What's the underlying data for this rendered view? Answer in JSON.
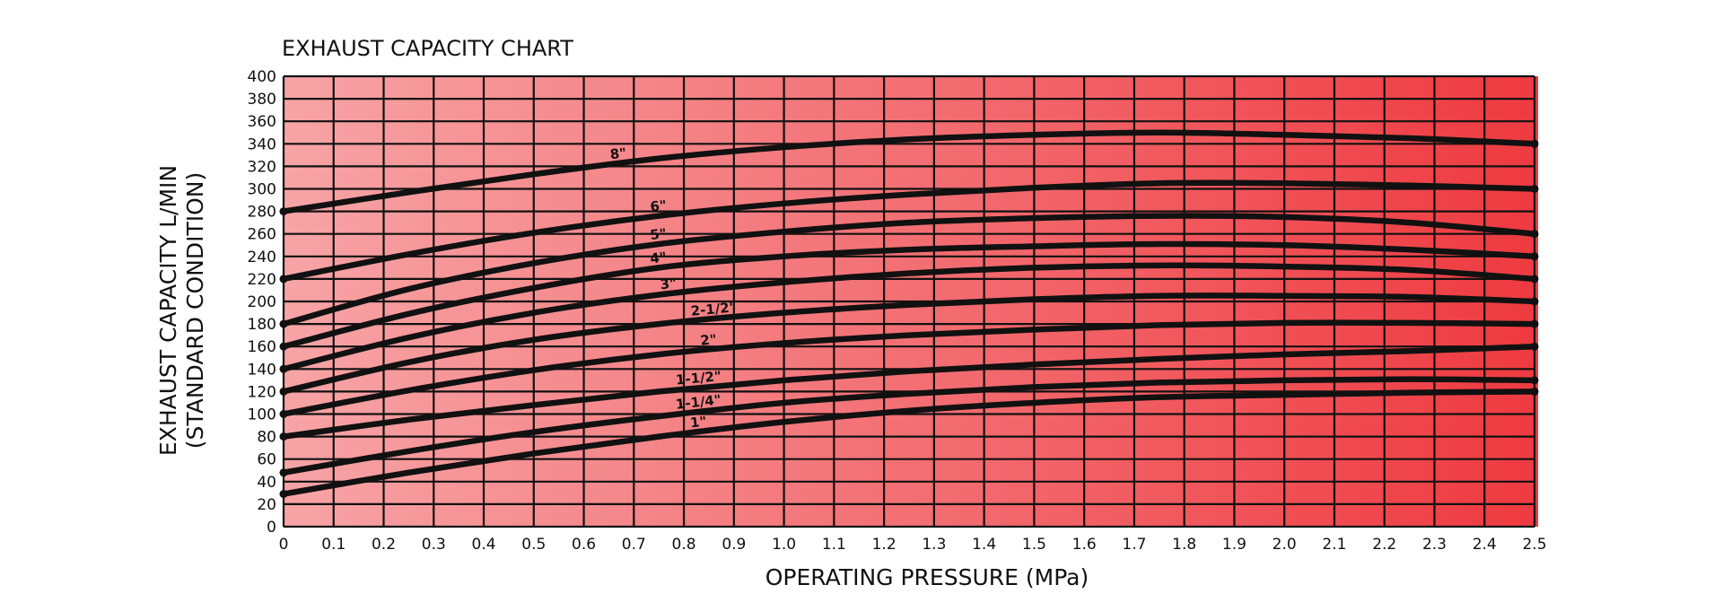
{
  "chart_data": {
    "type": "line",
    "title": "EXHAUST CAPACITY CHART",
    "xlabel": "OPERATING PRESSURE (MPa)",
    "ylabel": [
      "EXHAUST CAPACITY L/MIN",
      "(STANDARD CONDITION)"
    ],
    "xlim": [
      0,
      2.5
    ],
    "ylim": [
      0,
      400
    ],
    "x_ticks": [
      "0",
      "0.1",
      "0.2",
      "0.3",
      "0.4",
      "0.5",
      "0.6",
      "0.7",
      "0.8",
      "0.9",
      "1.0",
      "1.1",
      "1.2",
      "1.3",
      "1.4",
      "1.5",
      "1.6",
      "1.7",
      "1.8",
      "1.9",
      "2.0",
      "2.1",
      "2.2",
      "2.3",
      "2.4",
      "2.5"
    ],
    "y_ticks": [
      "0",
      "20",
      "40",
      "60",
      "80",
      "100",
      "120",
      "140",
      "160",
      "180",
      "200",
      "220",
      "240",
      "260",
      "280",
      "300",
      "320",
      "340",
      "360",
      "380",
      "400"
    ],
    "grid": true,
    "background_gradient": [
      "#f7a4a6",
      "#ee3a40"
    ],
    "series": [
      {
        "name": "8\"",
        "label_at": 0.67,
        "x": [
          0,
          0.25,
          0.5,
          0.75,
          1.0,
          1.25,
          1.5,
          1.75,
          2.0,
          2.25,
          2.5
        ],
        "y": [
          280,
          297,
          313,
          327,
          337,
          344,
          348,
          350,
          348,
          345,
          340
        ]
      },
      {
        "name": "6\"",
        "label_at": 0.75,
        "x": [
          0,
          0.25,
          0.5,
          0.75,
          1.0,
          1.25,
          1.5,
          1.75,
          2.0,
          2.25,
          2.5
        ],
        "y": [
          220,
          242,
          261,
          276,
          287,
          295,
          301,
          305,
          305,
          303,
          300
        ]
      },
      {
        "name": "5\"",
        "label_at": 0.75,
        "x": [
          0,
          0.25,
          0.5,
          0.75,
          1.0,
          1.25,
          1.5,
          1.75,
          2.0,
          2.25,
          2.5
        ],
        "y": [
          180,
          211,
          234,
          251,
          262,
          270,
          274,
          276,
          275,
          270,
          260
        ]
      },
      {
        "name": "4\"",
        "label_at": 0.75,
        "x": [
          0,
          0.25,
          0.5,
          0.75,
          1.0,
          1.25,
          1.5,
          1.75,
          2.0,
          2.25,
          2.5
        ],
        "y": [
          160,
          189,
          212,
          230,
          240,
          246,
          249,
          251,
          250,
          246,
          240
        ]
      },
      {
        "name": "3\"",
        "label_at": 0.77,
        "x": [
          0,
          0.25,
          0.5,
          0.75,
          1.0,
          1.25,
          1.5,
          1.75,
          2.0,
          2.25,
          2.5
        ],
        "y": [
          140,
          168,
          190,
          206,
          217,
          225,
          230,
          232,
          231,
          228,
          220
        ]
      },
      {
        "name": "2-1/2\"",
        "label_at": 0.86,
        "x": [
          0,
          0.25,
          0.5,
          0.75,
          1.0,
          1.25,
          1.5,
          1.75,
          2.0,
          2.25,
          2.5
        ],
        "y": [
          120,
          146,
          166,
          180,
          190,
          197,
          202,
          205,
          205,
          204,
          200
        ]
      },
      {
        "name": "2\"",
        "label_at": 0.85,
        "x": [
          0,
          0.25,
          0.5,
          0.75,
          1.0,
          1.25,
          1.5,
          1.75,
          2.0,
          2.25,
          2.5
        ],
        "y": [
          100,
          121,
          139,
          153,
          163,
          170,
          175,
          179,
          181,
          181,
          180
        ]
      },
      {
        "name": "1-1/2\"",
        "label_at": 0.83,
        "x": [
          0,
          0.25,
          0.5,
          0.75,
          1.0,
          1.25,
          1.5,
          1.75,
          2.0,
          2.25,
          2.5
        ],
        "y": [
          80,
          95,
          108,
          120,
          130,
          138,
          144,
          149,
          153,
          156,
          160
        ]
      },
      {
        "name": "1-1/4\"",
        "label_at": 0.83,
        "x": [
          0,
          0.25,
          0.5,
          0.75,
          1.0,
          1.25,
          1.5,
          1.75,
          2.0,
          2.25,
          2.5
        ],
        "y": [
          48,
          67,
          84,
          98,
          110,
          118,
          124,
          128,
          130,
          131,
          130
        ]
      },
      {
        "name": "1\"",
        "label_at": 0.83,
        "x": [
          0,
          0.25,
          0.5,
          0.75,
          1.0,
          1.25,
          1.5,
          1.75,
          2.0,
          2.25,
          2.5
        ],
        "y": [
          29,
          48,
          65,
          80,
          93,
          103,
          110,
          115,
          117,
          119,
          120
        ]
      }
    ]
  }
}
